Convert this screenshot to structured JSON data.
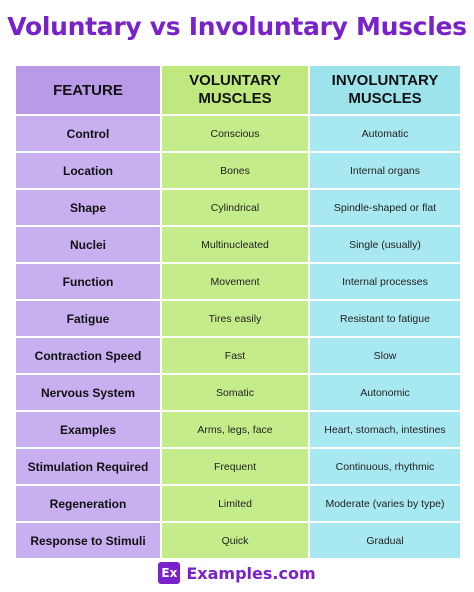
{
  "title": "Voluntary vs Involuntary Muscles",
  "table": {
    "headers": [
      "FEATURE",
      "VOLUNTARY MUSCLES",
      "INVOLUNTARY MUSCLES"
    ],
    "rows": [
      [
        "Control",
        "Conscious",
        "Automatic"
      ],
      [
        "Location",
        "Bones",
        "Internal organs"
      ],
      [
        "Shape",
        "Cylindrical",
        "Spindle-shaped or flat"
      ],
      [
        "Nuclei",
        "Multinucleated",
        "Single (usually)"
      ],
      [
        "Function",
        "Movement",
        "Internal processes"
      ],
      [
        "Fatigue",
        "Tires easily",
        "Resistant to fatigue"
      ],
      [
        "Contraction Speed",
        "Fast",
        "Slow"
      ],
      [
        "Nervous System",
        "Somatic",
        "Autonomic"
      ],
      [
        "Examples",
        "Arms, legs, face",
        "Heart, stomach, intestines"
      ],
      [
        "Stimulation Required",
        "Frequent",
        "Continuous, rhythmic"
      ],
      [
        "Regeneration",
        "Limited",
        "Moderate (varies by type)"
      ],
      [
        "Response to Stimuli",
        "Quick",
        "Gradual"
      ]
    ]
  },
  "footer": {
    "logo_mark": "Ex",
    "brand": "Examples.com"
  },
  "colors": {
    "title": "#7a22c9",
    "feature_column": "#c7aff0",
    "voluntary_column": "#c5ec8a",
    "involuntary_column": "#a8e8f0"
  }
}
